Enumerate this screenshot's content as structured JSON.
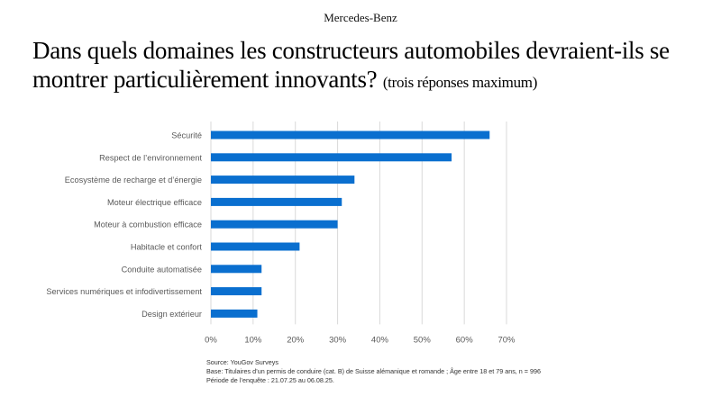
{
  "header": {
    "brand": "Mercedes-Benz",
    "title": "Dans quels domaines les constructeurs automobiles devraient-ils se montrer particulièrement innovants?",
    "subtitle": "(trois réponses maximum)"
  },
  "chart_data": {
    "type": "bar",
    "orientation": "horizontal",
    "categories": [
      "Sécurité",
      "Respect de l’environnement",
      "Ecosystème de recharge et d’énergie",
      "Moteur électrique efficace",
      "Moteur à combustion efficace",
      "Habitacle et confort",
      "Conduite automatisée",
      "Services numériques et infodivertissement",
      "Design extérieur"
    ],
    "values": [
      66,
      57,
      34,
      31,
      30,
      21,
      12,
      12,
      11
    ],
    "xlim": [
      0,
      70
    ],
    "xticks": [
      "0%",
      "10%",
      "20%",
      "30%",
      "40%",
      "50%",
      "60%",
      "70%"
    ],
    "grid": "vertical",
    "bar_color": "#0a6fcf"
  },
  "footer": {
    "source": "Source: YouGov Surveys",
    "base": "Base: Titulaires d’un permis de conduire (cat. B) de Suisse alémanique et romande ; Âge entre 18 et 79 ans, n = 996",
    "period": "Période de l’enquête : 21.07.25 au 06.08.25."
  }
}
